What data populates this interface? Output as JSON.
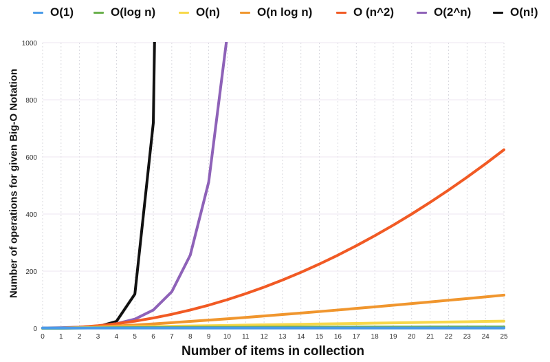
{
  "chart_data": {
    "type": "line",
    "title": "",
    "xlabel": "Number of items in collection",
    "ylabel": "Number of operations for given Big-O Notation",
    "xlim": [
      0,
      25
    ],
    "ylim": [
      0,
      1000
    ],
    "x_ticks": [
      0,
      1,
      2,
      3,
      4,
      5,
      6,
      7,
      8,
      9,
      10,
      11,
      12,
      13,
      14,
      15,
      16,
      17,
      18,
      19,
      20,
      21,
      22,
      23,
      24,
      25
    ],
    "y_ticks": [
      0,
      200,
      400,
      600,
      800,
      1000
    ],
    "grid": true,
    "legend_position": "top",
    "x": [
      0,
      1,
      2,
      3,
      4,
      5,
      6,
      7,
      8,
      9,
      10,
      11,
      12,
      13,
      14,
      15,
      16,
      17,
      18,
      19,
      20,
      21,
      22,
      23,
      24,
      25
    ],
    "series": [
      {
        "name": "O(1)",
        "color": "#4a9be8",
        "values": [
          1,
          1,
          1,
          1,
          1,
          1,
          1,
          1,
          1,
          1,
          1,
          1,
          1,
          1,
          1,
          1,
          1,
          1,
          1,
          1,
          1,
          1,
          1,
          1,
          1,
          1
        ]
      },
      {
        "name": "O(log n)",
        "color": "#6ab04c",
        "values": [
          0,
          0,
          1,
          1.58,
          2,
          2.32,
          2.58,
          2.81,
          3,
          3.17,
          3.32,
          3.46,
          3.58,
          3.7,
          3.81,
          3.91,
          4,
          4.09,
          4.17,
          4.25,
          4.32,
          4.39,
          4.46,
          4.52,
          4.58,
          4.64
        ]
      },
      {
        "name": "O(n)",
        "color": "#f7d84a",
        "values": [
          0,
          1,
          2,
          3,
          4,
          5,
          6,
          7,
          8,
          9,
          10,
          11,
          12,
          13,
          14,
          15,
          16,
          17,
          18,
          19,
          20,
          21,
          22,
          23,
          24,
          25
        ]
      },
      {
        "name": "O(n log n)",
        "color": "#f0962e",
        "values": [
          0,
          0,
          2,
          4.75,
          8,
          11.6,
          15.5,
          19.7,
          24,
          28.5,
          33.2,
          38,
          43,
          48.1,
          53.3,
          58.6,
          64,
          69.5,
          75.1,
          80.7,
          86.4,
          92.2,
          98.1,
          104,
          110,
          116.1
        ]
      },
      {
        "name": "O (n^2)",
        "color": "#f15a24",
        "values": [
          0,
          1,
          4,
          9,
          16,
          25,
          36,
          49,
          64,
          81,
          100,
          121,
          144,
          169,
          196,
          225,
          256,
          289,
          324,
          361,
          400,
          441,
          484,
          529,
          576,
          625
        ]
      },
      {
        "name": "O(2^n)",
        "color": "#8e62b8",
        "values": [
          1,
          2,
          4,
          8,
          16,
          32,
          64,
          128,
          256,
          512,
          1024
        ]
      },
      {
        "name": "O(n!)",
        "color": "#111111",
        "values": [
          1,
          1,
          2,
          6,
          24,
          120,
          720,
          5040
        ]
      }
    ]
  },
  "legend": [
    {
      "label": "O(1)",
      "color": "#4a9be8"
    },
    {
      "label": "O(log n)",
      "color": "#6ab04c"
    },
    {
      "label": "O(n)",
      "color": "#f7d84a"
    },
    {
      "label": "O(n log n)",
      "color": "#f0962e"
    },
    {
      "label": "O (n^2)",
      "color": "#f15a24"
    },
    {
      "label": "O(2^n)",
      "color": "#8e62b8"
    },
    {
      "label": "O(n!)",
      "color": "#111111"
    }
  ]
}
